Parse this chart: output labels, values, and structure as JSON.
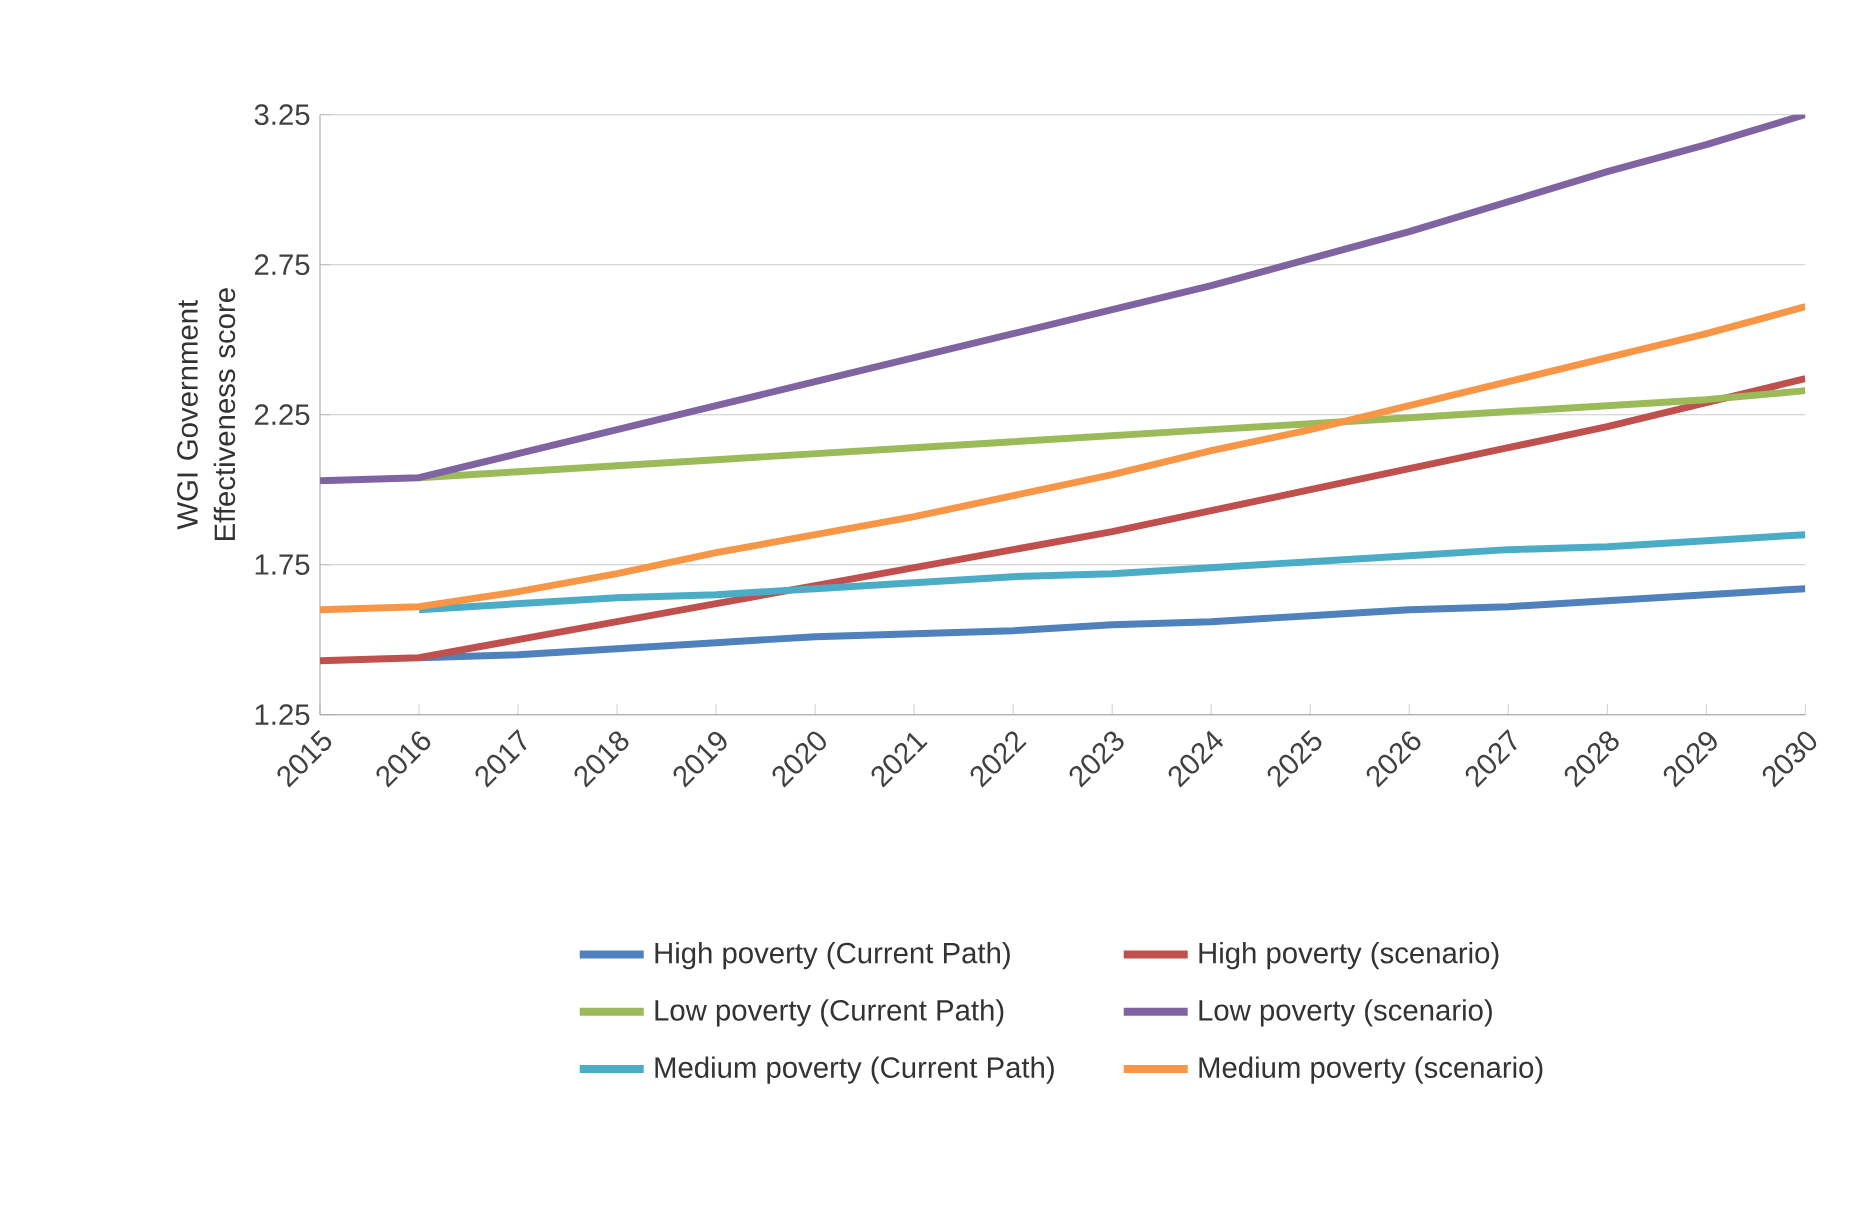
{
  "chart_data": {
    "type": "line",
    "ylabel": "WGI Government Effectiveness score",
    "categories": [
      "2015",
      "2016",
      "2017",
      "2018",
      "2019",
      "2020",
      "2021",
      "2022",
      "2023",
      "2024",
      "2025",
      "2026",
      "2027",
      "2028",
      "2029",
      "2030"
    ],
    "ylim": [
      1.25,
      3.25
    ],
    "yticks": [
      1.25,
      1.75,
      2.25,
      2.75,
      3.25
    ],
    "grid": "y",
    "legend": "bottom",
    "marker": "none",
    "line_style": "solid",
    "series": [
      {
        "name": "High poverty (Current Path)",
        "color": "#4f81bd",
        "values": [
          null,
          1.44,
          1.45,
          1.47,
          1.49,
          1.51,
          1.52,
          1.53,
          1.55,
          1.56,
          1.58,
          1.6,
          1.61,
          1.63,
          1.65,
          1.67
        ]
      },
      {
        "name": "High poverty (scenario)",
        "color": "#c0504d",
        "values": [
          1.43,
          1.44,
          1.5,
          1.56,
          1.62,
          1.68,
          1.74,
          1.8,
          1.86,
          1.93,
          2.0,
          2.07,
          2.14,
          2.21,
          2.29,
          2.37
        ]
      },
      {
        "name": "Low poverty (Current Path)",
        "color": "#9bbb59",
        "values": [
          null,
          2.04,
          2.06,
          2.08,
          2.1,
          2.12,
          2.14,
          2.16,
          2.18,
          2.2,
          2.22,
          2.24,
          2.26,
          2.28,
          2.3,
          2.33
        ]
      },
      {
        "name": "Low poverty (scenario)",
        "color": "#8064a2",
        "values": [
          2.03,
          2.04,
          2.12,
          2.2,
          2.28,
          2.36,
          2.44,
          2.52,
          2.6,
          2.68,
          2.77,
          2.86,
          2.96,
          3.06,
          3.15,
          3.25
        ]
      },
      {
        "name": "Medium poverty (Current Path)",
        "color": "#4bacc6",
        "values": [
          null,
          1.6,
          1.62,
          1.64,
          1.65,
          1.67,
          1.69,
          1.71,
          1.72,
          1.74,
          1.76,
          1.78,
          1.8,
          1.81,
          1.83,
          1.85
        ]
      },
      {
        "name": "Medium poverty (scenario)",
        "color": "#f79646",
        "values": [
          1.6,
          1.61,
          1.66,
          1.72,
          1.79,
          1.85,
          1.91,
          1.98,
          2.05,
          2.13,
          2.2,
          2.28,
          2.36,
          2.44,
          2.52,
          2.61
        ]
      }
    ]
  }
}
